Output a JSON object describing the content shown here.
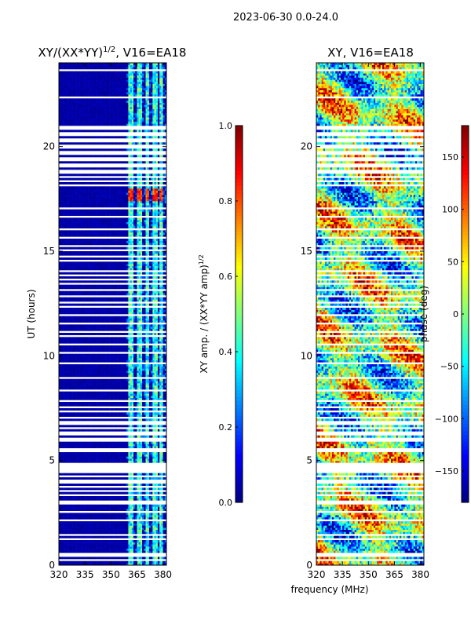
{
  "figure": {
    "suptitle": "2023-06-30 0.0-24.0",
    "xlabel": "frequency (MHz)"
  },
  "colors": {
    "jet": [
      "#00007f",
      "#0000ff",
      "#007fff",
      "#00ffff",
      "#7fff7f",
      "#ffff00",
      "#ff7f00",
      "#ff0000",
      "#7f0000"
    ],
    "gap": "#ffffff",
    "axis": "#000000"
  },
  "chart_data": [
    {
      "type": "heatmap",
      "name": "amplitude-panel",
      "title": "XY/(XX*YY)",
      "title_sup": "1/2",
      "title_rest": ", V16=EA18",
      "xlabel": "",
      "ylabel": "UT (hours)",
      "xlim": [
        320,
        382
      ],
      "ylim": [
        0,
        24
      ],
      "xticks": [
        320,
        335,
        350,
        365,
        380
      ],
      "yticks": [
        0,
        5,
        10,
        15,
        20
      ],
      "colorbar": {
        "label": "XY amp. / (XX*YY amp)",
        "label_sup": "1/2",
        "range": [
          0.0,
          1.0
        ],
        "ticks": [
          "0.0",
          "0.2",
          "0.4",
          "0.6",
          "0.8",
          "1.0"
        ],
        "tick_values": [
          0.0,
          0.2,
          0.4,
          0.6,
          0.8,
          1.0
        ]
      },
      "background_value": 0.02,
      "band_columns_mhz": [
        [
          360,
          363
        ],
        [
          365,
          368
        ],
        [
          370,
          372
        ],
        [
          374,
          377
        ],
        [
          378,
          380
        ]
      ],
      "band_value_range": [
        0.25,
        0.55
      ],
      "flare_hours": [
        17.4,
        18.0
      ],
      "flare_value": 0.82
    },
    {
      "type": "heatmap",
      "name": "phase-panel",
      "title": "XY, V16=EA18",
      "xlabel": "",
      "ylabel": "",
      "xlim": [
        320,
        382
      ],
      "ylim": [
        0,
        24
      ],
      "xticks": [
        320,
        335,
        350,
        365,
        380
      ],
      "yticks": [
        0,
        5,
        10,
        15,
        20
      ],
      "colorbar": {
        "label": "phase (deg)",
        "range": [
          -180,
          180
        ],
        "ticks": [
          "−150",
          "−100",
          "−50",
          "0",
          "50",
          "100",
          "150"
        ],
        "tick_values": [
          -150,
          -100,
          -50,
          0,
          50,
          100,
          150
        ]
      }
    }
  ],
  "flagged_gaps_hours": [
    0.2,
    0.4,
    0.55,
    1.25,
    1.45,
    2.1,
    2.55,
    3.0,
    3.35,
    3.55,
    3.7,
    4.0,
    4.25,
    4.5,
    4.65,
    4.8,
    5.5,
    5.9,
    6.1,
    6.3,
    6.55,
    6.8,
    7.1,
    7.35,
    7.6,
    7.85,
    8.3,
    8.5,
    8.95,
    9.65,
    10.0,
    10.2,
    10.55,
    10.9,
    11.2,
    11.6,
    11.9,
    12.3,
    12.6,
    12.8,
    13.2,
    13.4,
    13.65,
    13.85,
    14.1,
    14.55,
    14.75,
    15.05,
    15.25,
    15.7,
    16.05,
    16.6,
    17.05,
    17.3,
    18.15,
    18.35,
    18.55,
    19.0,
    19.25,
    19.5,
    19.8,
    20.0,
    20.25,
    20.5,
    20.75,
    21.0,
    21.7,
    22.0,
    22.4,
    22.7,
    23.0,
    23.3,
    23.6
  ],
  "wide_gaps_hours": [
    [
      18.7,
      21.0
    ]
  ]
}
